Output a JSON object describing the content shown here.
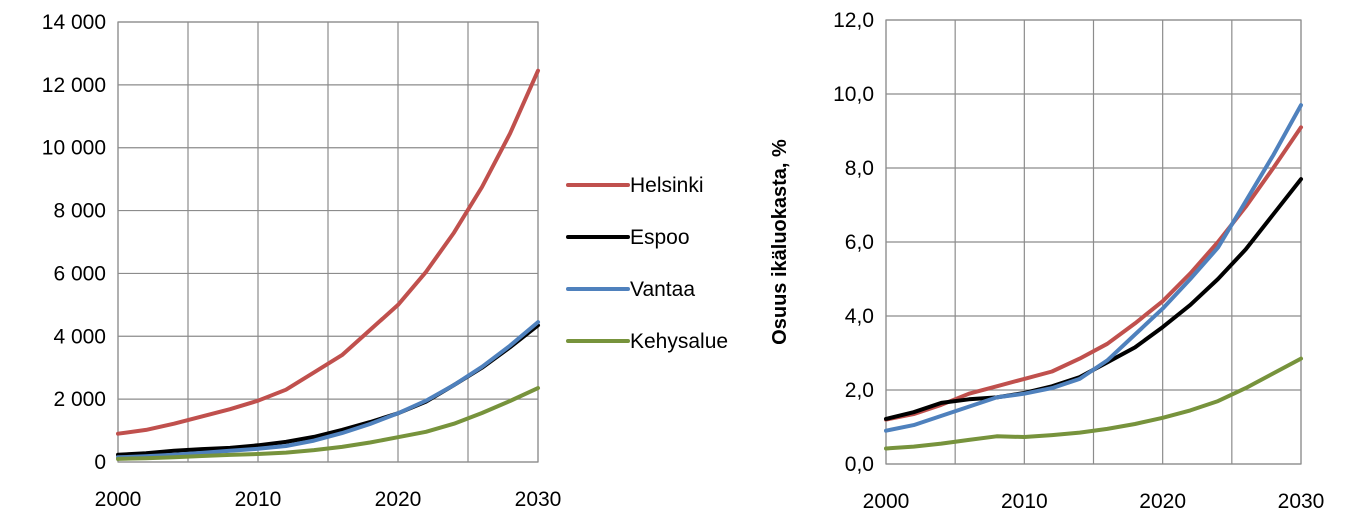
{
  "chart_data": [
    {
      "type": "line",
      "title": "",
      "xlabel": "",
      "ylabel": "",
      "xlim": [
        2000,
        2030
      ],
      "ylim": [
        0,
        14000
      ],
      "x_ticks": [
        2000,
        2010,
        2020,
        2030
      ],
      "x_tick_labels": [
        "2000",
        "2010",
        "2020",
        "2030"
      ],
      "y_ticks": [
        0,
        2000,
        4000,
        6000,
        8000,
        10000,
        12000,
        14000
      ],
      "y_tick_labels": [
        "0",
        "2 000",
        "4 000",
        "6 000",
        "8 000",
        "10 000",
        "12 000",
        "14 000"
      ],
      "x_grid_step": 5,
      "grid": true,
      "legend_position": "right",
      "series": [
        {
          "name": "Helsinki",
          "color": "#c0504d",
          "points": [
            [
              2000,
              900
            ],
            [
              2002,
              1020
            ],
            [
              2004,
              1220
            ],
            [
              2006,
              1450
            ],
            [
              2008,
              1680
            ],
            [
              2010,
              1950
            ],
            [
              2012,
              2300
            ],
            [
              2014,
              2850
            ],
            [
              2016,
              3400
            ],
            [
              2018,
              4200
            ],
            [
              2020,
              5000
            ],
            [
              2022,
              6050
            ],
            [
              2024,
              7300
            ],
            [
              2026,
              8750
            ],
            [
              2028,
              10450
            ],
            [
              2030,
              12450
            ]
          ]
        },
        {
          "name": "Espoo",
          "color": "#000000",
          "points": [
            [
              2000,
              230
            ],
            [
              2002,
              280
            ],
            [
              2004,
              360
            ],
            [
              2006,
              410
            ],
            [
              2008,
              450
            ],
            [
              2010,
              530
            ],
            [
              2012,
              640
            ],
            [
              2014,
              800
            ],
            [
              2016,
              1020
            ],
            [
              2018,
              1270
            ],
            [
              2020,
              1550
            ],
            [
              2022,
              1920
            ],
            [
              2024,
              2450
            ],
            [
              2026,
              3000
            ],
            [
              2028,
              3650
            ],
            [
              2030,
              4350
            ]
          ]
        },
        {
          "name": "Vantaa",
          "color": "#4f81bd",
          "points": [
            [
              2000,
              150
            ],
            [
              2002,
              180
            ],
            [
              2004,
              230
            ],
            [
              2006,
              290
            ],
            [
              2008,
              360
            ],
            [
              2010,
              420
            ],
            [
              2012,
              510
            ],
            [
              2014,
              680
            ],
            [
              2016,
              920
            ],
            [
              2018,
              1210
            ],
            [
              2020,
              1550
            ],
            [
              2022,
              1950
            ],
            [
              2024,
              2450
            ],
            [
              2026,
              3030
            ],
            [
              2028,
              3700
            ],
            [
              2030,
              4450
            ]
          ]
        },
        {
          "name": "Kehysalue",
          "color": "#77933c",
          "points": [
            [
              2000,
              100
            ],
            [
              2002,
              120
            ],
            [
              2004,
              150
            ],
            [
              2006,
              190
            ],
            [
              2008,
              225
            ],
            [
              2010,
              255
            ],
            [
              2012,
              300
            ],
            [
              2014,
              380
            ],
            [
              2016,
              480
            ],
            [
              2018,
              620
            ],
            [
              2020,
              790
            ],
            [
              2022,
              960
            ],
            [
              2024,
              1220
            ],
            [
              2026,
              1560
            ],
            [
              2028,
              1940
            ],
            [
              2030,
              2350
            ]
          ]
        }
      ]
    },
    {
      "type": "line",
      "title": "",
      "xlabel": "",
      "ylabel": "Osuus ikäluokasta, %",
      "xlim": [
        2000,
        2030
      ],
      "ylim": [
        0,
        12
      ],
      "x_ticks": [
        2000,
        2010,
        2020,
        2030
      ],
      "x_tick_labels": [
        "2000",
        "2010",
        "2020",
        "2030"
      ],
      "y_ticks": [
        0,
        2,
        4,
        6,
        8,
        10,
        12
      ],
      "y_tick_labels": [
        "0,0",
        "2,0",
        "4,0",
        "6,0",
        "8,0",
        "10,0",
        "12,0"
      ],
      "x_grid_step": 5,
      "grid": true,
      "legend_position": "none",
      "series": [
        {
          "color": "#c0504d",
          "points": [
            [
              2000,
              1.2
            ],
            [
              2002,
              1.35
            ],
            [
              2004,
              1.6
            ],
            [
              2006,
              1.9
            ],
            [
              2008,
              2.1
            ],
            [
              2010,
              2.3
            ],
            [
              2012,
              2.5
            ],
            [
              2014,
              2.85
            ],
            [
              2016,
              3.25
            ],
            [
              2018,
              3.8
            ],
            [
              2020,
              4.4
            ],
            [
              2022,
              5.15
            ],
            [
              2024,
              6.0
            ],
            [
              2026,
              6.95
            ],
            [
              2028,
              8.0
            ],
            [
              2030,
              9.1
            ]
          ]
        },
        {
          "color": "#000000",
          "points": [
            [
              2000,
              1.22
            ],
            [
              2002,
              1.4
            ],
            [
              2004,
              1.65
            ],
            [
              2006,
              1.75
            ],
            [
              2008,
              1.8
            ],
            [
              2010,
              1.92
            ],
            [
              2012,
              2.1
            ],
            [
              2014,
              2.35
            ],
            [
              2016,
              2.75
            ],
            [
              2018,
              3.15
            ],
            [
              2020,
              3.7
            ],
            [
              2022,
              4.3
            ],
            [
              2024,
              5.0
            ],
            [
              2026,
              5.8
            ],
            [
              2028,
              6.75
            ],
            [
              2030,
              7.7
            ]
          ]
        },
        {
          "color": "#4f81bd",
          "points": [
            [
              2000,
              0.9
            ],
            [
              2002,
              1.05
            ],
            [
              2004,
              1.3
            ],
            [
              2006,
              1.55
            ],
            [
              2008,
              1.8
            ],
            [
              2010,
              1.9
            ],
            [
              2012,
              2.05
            ],
            [
              2014,
              2.3
            ],
            [
              2016,
              2.8
            ],
            [
              2018,
              3.5
            ],
            [
              2020,
              4.2
            ],
            [
              2022,
              5.0
            ],
            [
              2024,
              5.85
            ],
            [
              2026,
              7.1
            ],
            [
              2028,
              8.35
            ],
            [
              2030,
              9.7
            ]
          ]
        },
        {
          "color": "#77933c",
          "points": [
            [
              2000,
              0.42
            ],
            [
              2002,
              0.47
            ],
            [
              2004,
              0.55
            ],
            [
              2006,
              0.65
            ],
            [
              2008,
              0.75
            ],
            [
              2010,
              0.73
            ],
            [
              2012,
              0.78
            ],
            [
              2014,
              0.85
            ],
            [
              2016,
              0.95
            ],
            [
              2018,
              1.08
            ],
            [
              2020,
              1.25
            ],
            [
              2022,
              1.45
            ],
            [
              2024,
              1.7
            ],
            [
              2026,
              2.05
            ],
            [
              2028,
              2.45
            ],
            [
              2030,
              2.85
            ]
          ]
        }
      ]
    }
  ]
}
